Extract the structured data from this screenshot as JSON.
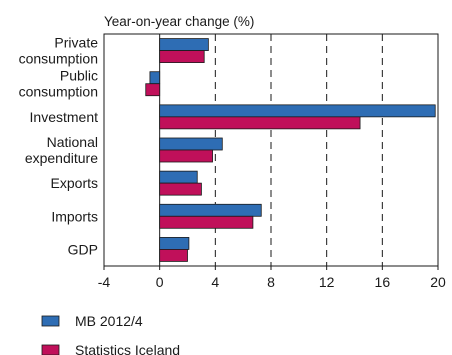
{
  "chart_data": {
    "type": "bar",
    "orientation": "horizontal",
    "title": "Year-on-year change (%)",
    "categories": [
      [
        "Private",
        "consumption"
      ],
      [
        "Public",
        "consumption"
      ],
      [
        "Investment"
      ],
      [
        "National",
        "expenditure"
      ],
      [
        "Exports"
      ],
      [
        "Imports"
      ],
      [
        "GDP"
      ]
    ],
    "series": [
      {
        "name": "MB 2012/4",
        "color": "#2e6db4",
        "values": [
          3.5,
          -0.7,
          19.8,
          4.5,
          2.7,
          7.3,
          2.1
        ]
      },
      {
        "name": "Statistics Iceland",
        "color": "#c0105a",
        "values": [
          3.2,
          -1.0,
          14.4,
          3.8,
          3.0,
          6.7,
          2.0
        ]
      }
    ],
    "xlim": [
      -4,
      20
    ],
    "xticks": [
      -4,
      0,
      4,
      8,
      12,
      16,
      20
    ],
    "gridlines": "dashed-vertical",
    "legend_position": "bottom-left"
  }
}
